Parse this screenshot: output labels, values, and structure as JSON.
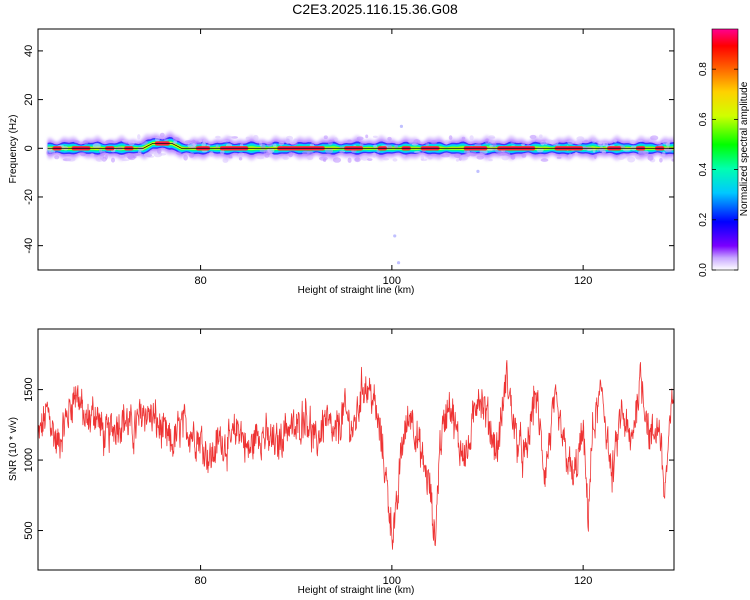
{
  "figure": {
    "title": "C2E3.2025.116.15.36.G08"
  },
  "chart_data": [
    {
      "type": "heatmap",
      "title": "C2E3.2025.116.15.36.G08",
      "xlabel": "Height of straight line (km)",
      "ylabel": "Frequency (Hz)",
      "xlim": [
        63,
        129.5
      ],
      "ylim": [
        -50,
        49
      ],
      "xticks": [
        80,
        100,
        120
      ],
      "yticks": [
        -40,
        -20,
        0,
        20,
        40
      ],
      "colorbar": {
        "label": "Normalized spectral amplitude",
        "range": [
          0,
          0.96
        ],
        "ticks": [
          0.0,
          0.2,
          0.4,
          0.6,
          0.8
        ]
      },
      "ridge": [
        {
          "x": 64,
          "f": 0
        },
        {
          "x": 74,
          "f": 0
        },
        {
          "x": 75,
          "f": 2
        },
        {
          "x": 77,
          "f": 2
        },
        {
          "x": 78,
          "f": 0
        },
        {
          "x": 129.5,
          "f": 0
        }
      ]
    },
    {
      "type": "line",
      "xlabel": "Height of straight line (km)",
      "ylabel": "SNR (10 * v/v)",
      "xlim": [
        63,
        129.5
      ],
      "ylim": [
        220,
        1930
      ],
      "xticks": [
        80,
        100,
        120
      ],
      "yticks": [
        500,
        1000,
        1500
      ],
      "series": [
        {
          "color": "#ee3333",
          "x": [
            63,
            64,
            65,
            66,
            67,
            68,
            69,
            70,
            71,
            72,
            73,
            74,
            75,
            76,
            77,
            78,
            79,
            80,
            81,
            82,
            83,
            84,
            85,
            86,
            87,
            88,
            89,
            90,
            91,
            92,
            93,
            94,
            95,
            96,
            97,
            98,
            99,
            99.5,
            100,
            100.5,
            101,
            102,
            103,
            104,
            104.5,
            105,
            106,
            107,
            108,
            109,
            110,
            111,
            112,
            113,
            114,
            115,
            116,
            117,
            118,
            119,
            120,
            120.5,
            121,
            122,
            123,
            124,
            125,
            126,
            127,
            128,
            128.5,
            129,
            129.5
          ],
          "y": [
            1150,
            1350,
            1100,
            1300,
            1500,
            1250,
            1350,
            1150,
            1250,
            1300,
            1200,
            1350,
            1300,
            1200,
            1100,
            1250,
            1200,
            1150,
            1000,
            1150,
            1100,
            1250,
            1050,
            1200,
            1150,
            1100,
            1250,
            1200,
            1350,
            1100,
            1300,
            1150,
            1350,
            1200,
            1550,
            1450,
            1100,
            800,
            500,
            600,
            1100,
            1350,
            1050,
            800,
            400,
            1100,
            1450,
            1100,
            1050,
            1500,
            1300,
            1050,
            1600,
            1150,
            1000,
            1500,
            900,
            1400,
            1100,
            850,
            1200,
            600,
            1200,
            1500,
            850,
            1350,
            1100,
            1600,
            1150,
            1250,
            750,
            1150,
            1550
          ]
        }
      ]
    }
  ]
}
